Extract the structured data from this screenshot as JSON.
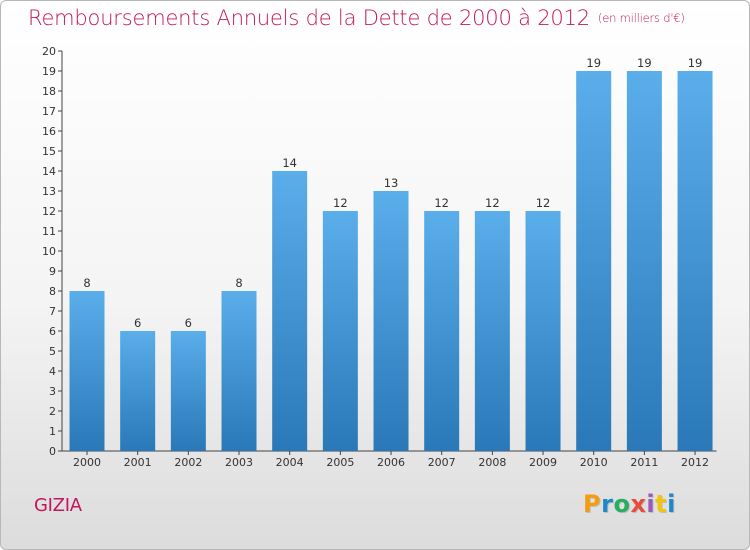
{
  "header": {
    "title": "Remboursements Annuels de la Dette de 2000 à 2012",
    "subtitle": "(en milliers d'€)"
  },
  "footer": {
    "commune": "GIZIA",
    "logo_text": "Proxiti",
    "logo_colors": [
      "#f39c12",
      "#1e88c9",
      "#27ae60",
      "#e74c3c",
      "#9b59b6",
      "#f1c40f",
      "#1e88c9"
    ]
  },
  "colors": {
    "accent": "#c2185b",
    "bar_top": "#5aaeea",
    "bar_bottom": "#2a78b8"
  },
  "chart_data": {
    "type": "bar",
    "title": "Remboursements Annuels de la Dette de 2000 à 2012",
    "subtitle": "(en milliers d'€)",
    "categories": [
      "2000",
      "2001",
      "2002",
      "2003",
      "2004",
      "2005",
      "2006",
      "2007",
      "2008",
      "2009",
      "2010",
      "2011",
      "2012"
    ],
    "values": [
      8,
      6,
      6,
      8,
      14,
      12,
      13,
      12,
      12,
      12,
      19,
      19,
      19
    ],
    "yticks": [
      0,
      1,
      2,
      3,
      4,
      5,
      6,
      7,
      8,
      9,
      10,
      11,
      12,
      13,
      14,
      15,
      16,
      17,
      18,
      19,
      20
    ],
    "ylim": [
      0,
      20
    ],
    "grid": false,
    "legend": "none"
  }
}
